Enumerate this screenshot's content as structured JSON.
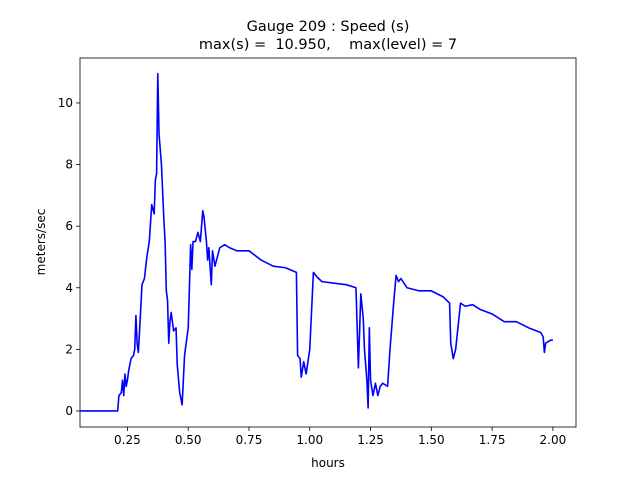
{
  "chart_data": {
    "type": "line",
    "title": "Gauge 209 : Speed (s)",
    "subtitle": "max(s) =  10.950,    max(level) = 7",
    "xlabel": "hours",
    "ylabel": "meters/sec",
    "color": "#0000ff",
    "x": [
      0.057,
      0.21,
      0.215,
      0.225,
      0.23,
      0.235,
      0.24,
      0.245,
      0.25,
      0.255,
      0.265,
      0.275,
      0.28,
      0.285,
      0.29,
      0.295,
      0.3,
      0.31,
      0.32,
      0.33,
      0.34,
      0.35,
      0.36,
      0.365,
      0.37,
      0.375,
      0.38,
      0.39,
      0.4,
      0.405,
      0.41,
      0.415,
      0.42,
      0.425,
      0.43,
      0.44,
      0.45,
      0.455,
      0.465,
      0.475,
      0.485,
      0.5,
      0.505,
      0.51,
      0.515,
      0.52,
      0.53,
      0.54,
      0.55,
      0.56,
      0.565,
      0.575,
      0.58,
      0.585,
      0.595,
      0.6,
      0.61,
      0.62,
      0.63,
      0.65,
      0.67,
      0.7,
      0.75,
      0.8,
      0.85,
      0.9,
      0.945,
      0.95,
      0.96,
      0.965,
      0.975,
      0.985,
      1.0,
      1.015,
      1.03,
      1.05,
      1.1,
      1.15,
      1.19,
      1.2,
      1.21,
      1.22,
      1.225,
      1.235,
      1.24,
      1.245,
      1.25,
      1.26,
      1.27,
      1.28,
      1.29,
      1.3,
      1.32,
      1.33,
      1.345,
      1.355,
      1.365,
      1.375,
      1.4,
      1.45,
      1.5,
      1.55,
      1.575,
      1.58,
      1.59,
      1.6,
      1.62,
      1.64,
      1.67,
      1.7,
      1.75,
      1.8,
      1.85,
      1.9,
      1.95,
      1.96,
      1.965,
      1.97,
      1.99,
      2.0
    ],
    "values": [
      0,
      0,
      0.5,
      0.6,
      1.0,
      0.5,
      1.2,
      0.8,
      1.0,
      1.3,
      1.7,
      1.8,
      2.0,
      3.1,
      2.2,
      1.9,
      2.6,
      4.1,
      4.3,
      5.0,
      5.5,
      6.7,
      6.4,
      7.5,
      7.7,
      10.95,
      9.0,
      8.0,
      6.2,
      5.5,
      3.9,
      3.6,
      2.2,
      2.9,
      3.2,
      2.6,
      2.7,
      1.5,
      0.6,
      0.2,
      1.8,
      2.7,
      4.0,
      5.4,
      4.6,
      5.5,
      5.5,
      5.8,
      5.5,
      6.5,
      6.3,
      5.5,
      4.9,
      5.3,
      4.1,
      5.2,
      4.7,
      5.0,
      5.3,
      5.4,
      5.3,
      5.2,
      5.2,
      4.9,
      4.7,
      4.65,
      4.5,
      1.8,
      1.7,
      1.1,
      1.6,
      1.2,
      2.0,
      4.5,
      4.35,
      4.2,
      4.15,
      4.1,
      4.0,
      1.4,
      3.8,
      3.0,
      2.0,
      1.0,
      0.1,
      2.7,
      1.0,
      0.5,
      0.9,
      0.5,
      0.8,
      0.9,
      0.8,
      2.0,
      3.5,
      4.4,
      4.2,
      4.3,
      4.0,
      3.9,
      3.9,
      3.7,
      3.5,
      2.2,
      1.7,
      2.0,
      3.5,
      3.4,
      3.45,
      3.3,
      3.15,
      2.9,
      2.9,
      2.7,
      2.55,
      2.4,
      1.9,
      2.2,
      2.3,
      2.3
    ],
    "xlim": [
      0.055,
      2.095
    ],
    "ylim": [
      -0.52,
      11.46
    ],
    "xticks": [
      0.25,
      {
        "value": 0.5,
        "label": "0.50"
      },
      0.75,
      {
        "value": 1.0,
        "label": "1.00"
      },
      1.25,
      {
        "value": 1.5,
        "label": "1.50"
      },
      1.75,
      {
        "value": 2.0,
        "label": "2.00"
      }
    ],
    "yticks": [
      0,
      2,
      4,
      6,
      8,
      10
    ]
  }
}
